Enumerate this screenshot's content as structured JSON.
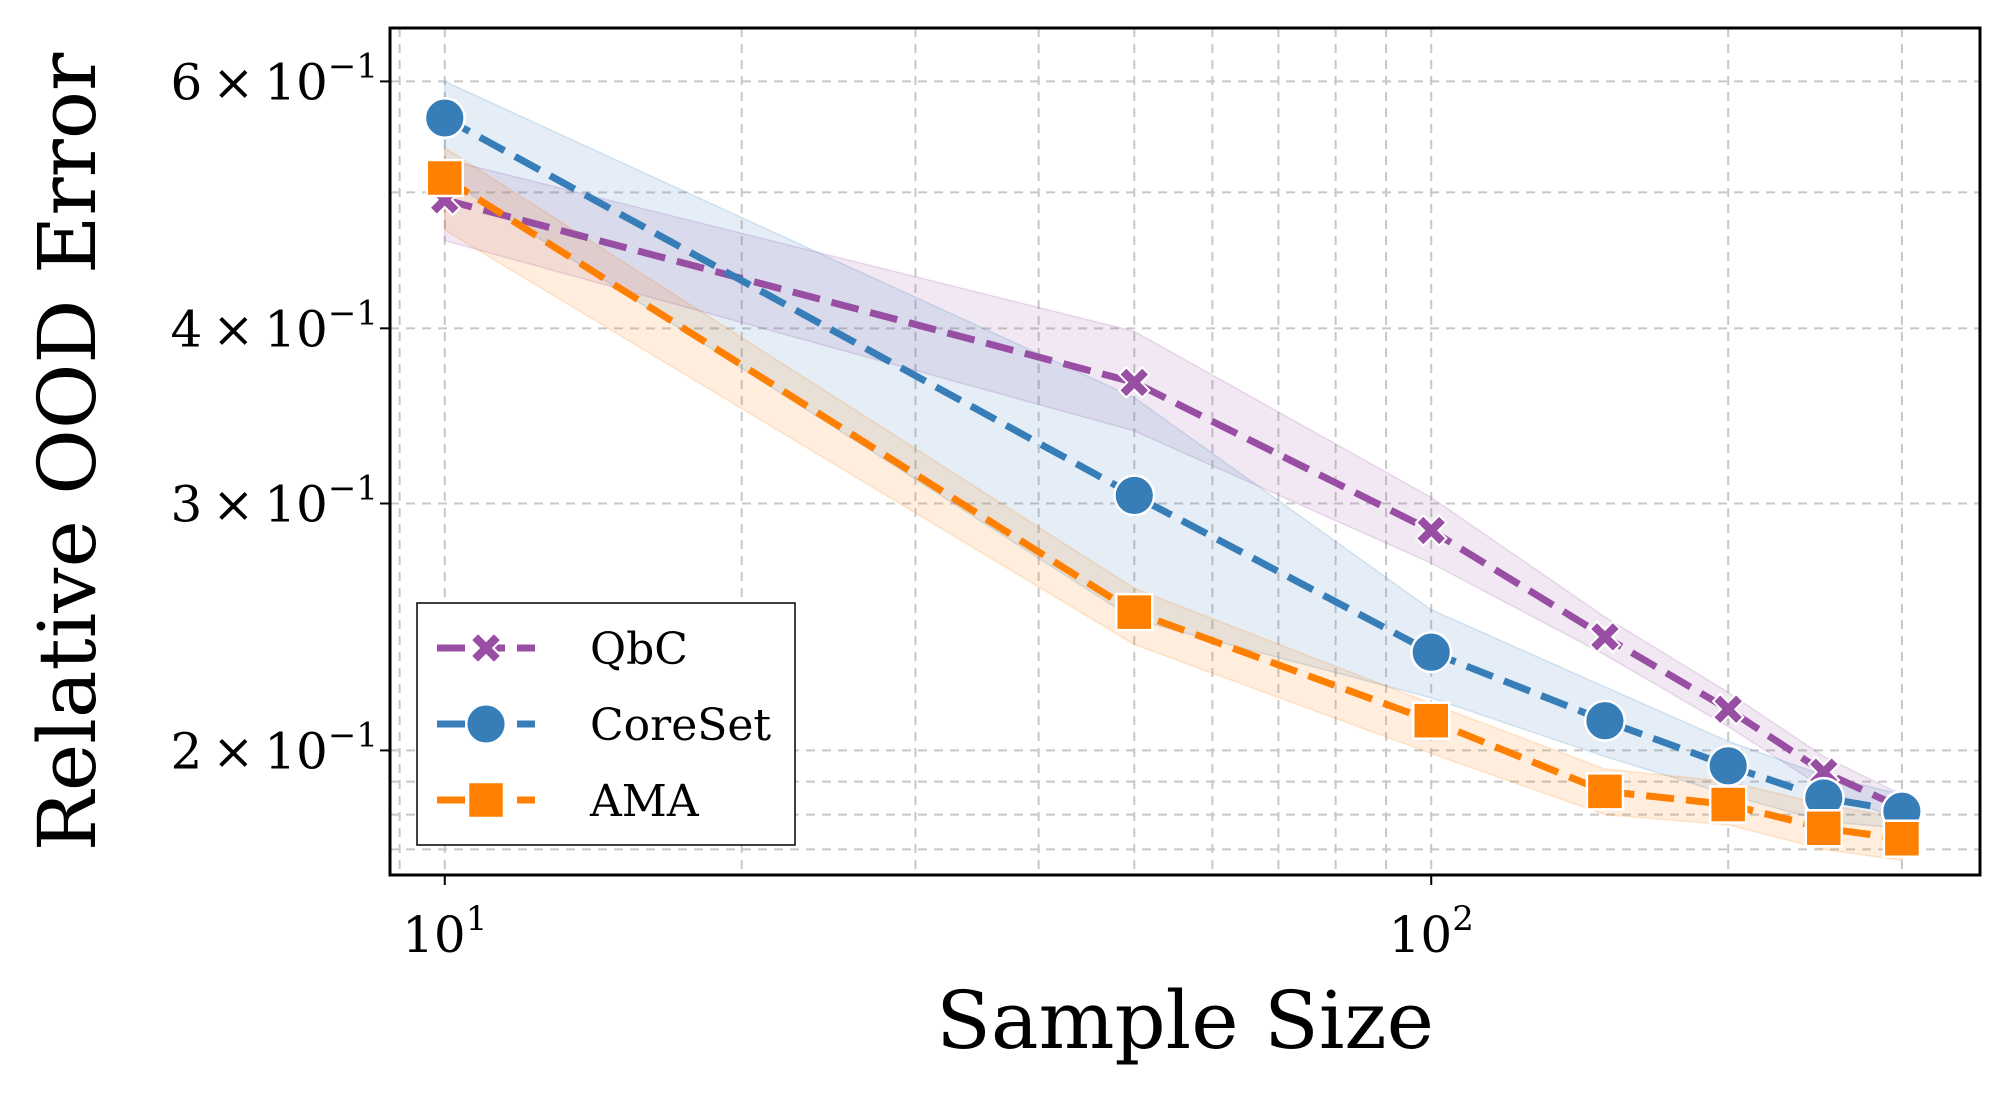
{
  "chart_data": {
    "type": "line",
    "xlabel": "Sample Size",
    "ylabel": "Relative OOD Error",
    "xscale": "log",
    "yscale": "log",
    "xlim": [
      8.8,
      360
    ],
    "ylim": [
      0.163,
      0.655
    ],
    "x_ticks": [
      {
        "value": 10,
        "base": "10",
        "exp": "1"
      },
      {
        "value": 100,
        "base": "10",
        "exp": "2"
      }
    ],
    "y_ticks": [
      {
        "value": 0.2,
        "mantissa": "2",
        "times": "×",
        "base": "10",
        "exp": "−1"
      },
      {
        "value": 0.3,
        "mantissa": "3",
        "times": "×",
        "base": "10",
        "exp": "−1"
      },
      {
        "value": 0.4,
        "mantissa": "4",
        "times": "×",
        "base": "10",
        "exp": "−1"
      },
      {
        "value": 0.6,
        "mantissa": "6",
        "times": "×",
        "base": "10",
        "exp": "−1"
      }
    ],
    "legend_position": "bottom-left",
    "grid": true,
    "series": [
      {
        "name": "QbC",
        "color": "#984ea3",
        "marker": "x",
        "x": [
          10,
          50,
          100,
          150,
          200,
          250,
          300
        ],
        "y": [
          0.494,
          0.366,
          0.287,
          0.241,
          0.214,
          0.193,
          0.182
        ],
        "lower": [
          0.462,
          0.338,
          0.272,
          0.234,
          0.208,
          0.188,
          0.178
        ],
        "upper": [
          0.528,
          0.398,
          0.303,
          0.249,
          0.22,
          0.198,
          0.186
        ]
      },
      {
        "name": "CoreSet",
        "color": "#377eb8",
        "marker": "o",
        "x": [
          10,
          50,
          100,
          150,
          200,
          250,
          300
        ],
        "y": [
          0.565,
          0.304,
          0.235,
          0.21,
          0.195,
          0.185,
          0.181
        ],
        "lower": [
          0.512,
          0.248,
          0.218,
          0.198,
          0.186,
          0.178,
          0.176
        ],
        "upper": [
          0.6,
          0.357,
          0.252,
          0.222,
          0.203,
          0.192,
          0.186
        ]
      },
      {
        "name": "AMA",
        "color": "#ff7f00",
        "marker": "s",
        "x": [
          10,
          50,
          100,
          150,
          200,
          250,
          300
        ],
        "y": [
          0.512,
          0.251,
          0.21,
          0.187,
          0.183,
          0.176,
          0.173
        ],
        "lower": [
          0.47,
          0.238,
          0.199,
          0.18,
          0.177,
          0.17,
          0.167
        ],
        "upper": [
          0.538,
          0.261,
          0.216,
          0.194,
          0.19,
          0.183,
          0.179
        ]
      }
    ]
  }
}
